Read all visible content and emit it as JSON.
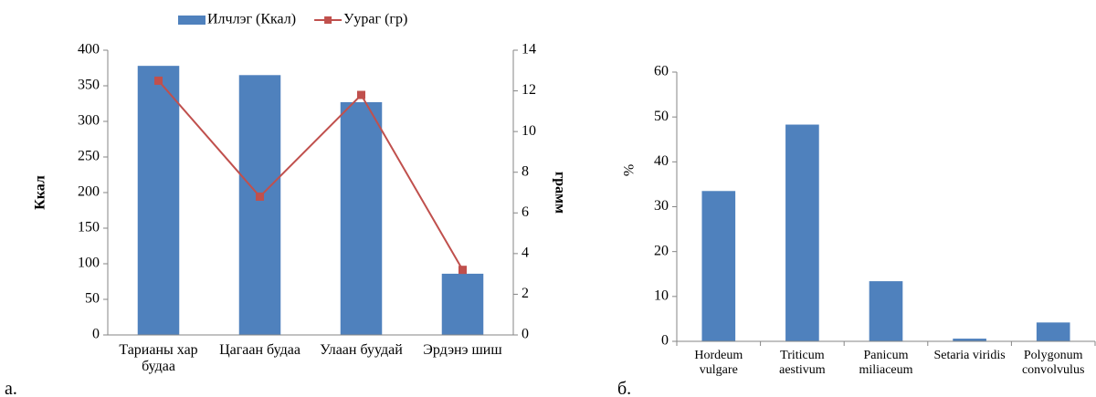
{
  "chart_data": [
    {
      "type": "combo",
      "label": "а.",
      "categories": [
        "Тарианы хар будаа",
        "Цагаан будаа",
        "Улаан буудай",
        "Эрдэнэ шиш"
      ],
      "series": [
        {
          "name": "Илчлэг (Ккал)",
          "color": "#4f81bd",
          "values": [
            378,
            365,
            327,
            86
          ]
        },
        {
          "name": "Уураг (гр)",
          "color": "#c0504d",
          "values": [
            12.5,
            6.8,
            11.8,
            3.2
          ],
          "axis": "y2"
        }
      ],
      "ylabel": "Ккал",
      "y2label": "грамм",
      "ylim": [
        0,
        400
      ],
      "yticks": [
        0,
        50,
        100,
        150,
        200,
        250,
        300,
        350,
        400
      ],
      "y2lim": [
        0,
        14
      ],
      "y2ticks": [
        0,
        2,
        4,
        6,
        8,
        10,
        12,
        14
      ],
      "legend": "top"
    },
    {
      "type": "bar",
      "label": "б.",
      "categories": [
        "Hordeum vulgare",
        "Triticum aestivum",
        "Panicum miliaceum",
        "Setaria viridis",
        "Polygonum convolvulus"
      ],
      "values": [
        33.5,
        48.3,
        13.4,
        0.6,
        4.2
      ],
      "color": "#4f81bd",
      "ylabel": "%",
      "ylim": [
        0,
        60
      ],
      "yticks": [
        0,
        10,
        20,
        30,
        40,
        50,
        60
      ]
    }
  ]
}
